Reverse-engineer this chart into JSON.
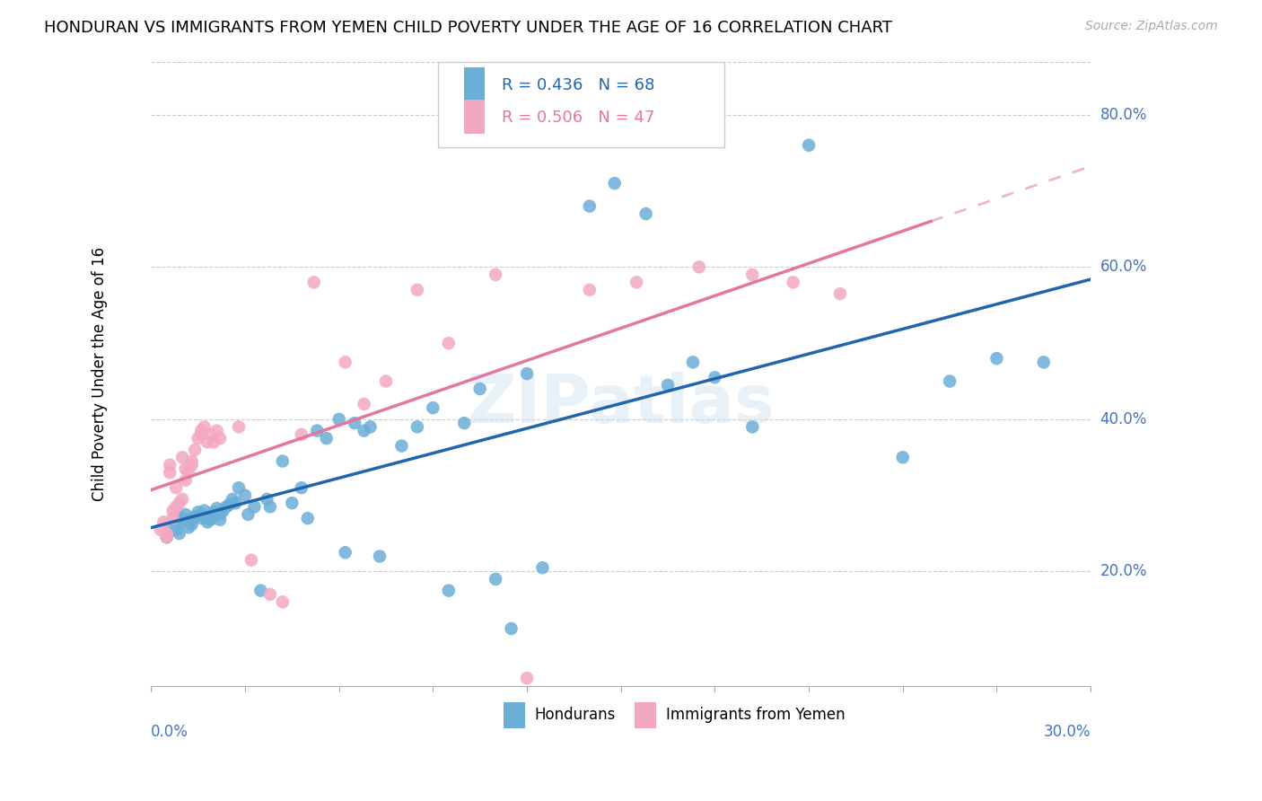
{
  "title": "HONDURAN VS IMMIGRANTS FROM YEMEN CHILD POVERTY UNDER THE AGE OF 16 CORRELATION CHART",
  "source": "Source: ZipAtlas.com",
  "ylabel": "Child Poverty Under the Age of 16",
  "y_ticks": [
    0.2,
    0.4,
    0.6,
    0.8
  ],
  "y_tick_labels": [
    "20.0%",
    "40.0%",
    "60.0%",
    "80.0%"
  ],
  "xmin": 0.0,
  "xmax": 0.3,
  "ymin": 0.05,
  "ymax": 0.87,
  "legend_blue_r": "R = 0.436",
  "legend_blue_n": "N = 68",
  "legend_pink_r": "R = 0.506",
  "legend_pink_n": "N = 47",
  "blue_color": "#6baed6",
  "pink_color": "#f4a8c0",
  "blue_line_color": "#2166ac",
  "pink_line_color": "#e377a0",
  "watermark": "ZIPatlas",
  "blue_scatter_x": [
    0.005,
    0.007,
    0.008,
    0.009,
    0.01,
    0.01,
    0.011,
    0.012,
    0.013,
    0.013,
    0.014,
    0.015,
    0.016,
    0.016,
    0.017,
    0.018,
    0.019,
    0.02,
    0.02,
    0.021,
    0.022,
    0.022,
    0.023,
    0.024,
    0.025,
    0.026,
    0.027,
    0.028,
    0.03,
    0.031,
    0.033,
    0.035,
    0.037,
    0.038,
    0.042,
    0.045,
    0.048,
    0.05,
    0.053,
    0.056,
    0.06,
    0.062,
    0.065,
    0.068,
    0.07,
    0.073,
    0.08,
    0.085,
    0.09,
    0.095,
    0.1,
    0.105,
    0.11,
    0.115,
    0.12,
    0.125,
    0.14,
    0.148,
    0.158,
    0.165,
    0.173,
    0.18,
    0.192,
    0.21,
    0.24,
    0.255,
    0.27,
    0.285
  ],
  "blue_scatter_y": [
    0.245,
    0.26,
    0.255,
    0.25,
    0.265,
    0.27,
    0.275,
    0.258,
    0.262,
    0.268,
    0.272,
    0.278,
    0.27,
    0.275,
    0.28,
    0.265,
    0.268,
    0.272,
    0.278,
    0.283,
    0.268,
    0.275,
    0.28,
    0.285,
    0.288,
    0.295,
    0.29,
    0.31,
    0.3,
    0.275,
    0.285,
    0.175,
    0.295,
    0.285,
    0.345,
    0.29,
    0.31,
    0.27,
    0.385,
    0.375,
    0.4,
    0.225,
    0.395,
    0.385,
    0.39,
    0.22,
    0.365,
    0.39,
    0.415,
    0.175,
    0.395,
    0.44,
    0.19,
    0.125,
    0.46,
    0.205,
    0.68,
    0.71,
    0.67,
    0.445,
    0.475,
    0.455,
    0.39,
    0.76,
    0.35,
    0.45,
    0.48,
    0.475
  ],
  "pink_scatter_x": [
    0.003,
    0.004,
    0.005,
    0.005,
    0.006,
    0.006,
    0.007,
    0.007,
    0.008,
    0.008,
    0.009,
    0.01,
    0.01,
    0.011,
    0.011,
    0.012,
    0.013,
    0.013,
    0.014,
    0.015,
    0.016,
    0.016,
    0.017,
    0.018,
    0.019,
    0.02,
    0.021,
    0.022,
    0.028,
    0.032,
    0.038,
    0.042,
    0.048,
    0.052,
    0.062,
    0.068,
    0.075,
    0.085,
    0.095,
    0.11,
    0.12,
    0.14,
    0.155,
    0.175,
    0.192,
    0.205,
    0.22
  ],
  "pink_scatter_y": [
    0.255,
    0.265,
    0.25,
    0.245,
    0.33,
    0.34,
    0.27,
    0.28,
    0.285,
    0.31,
    0.29,
    0.295,
    0.35,
    0.32,
    0.335,
    0.33,
    0.34,
    0.345,
    0.36,
    0.375,
    0.38,
    0.385,
    0.39,
    0.37,
    0.38,
    0.37,
    0.385,
    0.375,
    0.39,
    0.215,
    0.17,
    0.16,
    0.38,
    0.58,
    0.475,
    0.42,
    0.45,
    0.57,
    0.5,
    0.59,
    0.06,
    0.57,
    0.58,
    0.6,
    0.59,
    0.58,
    0.565
  ]
}
